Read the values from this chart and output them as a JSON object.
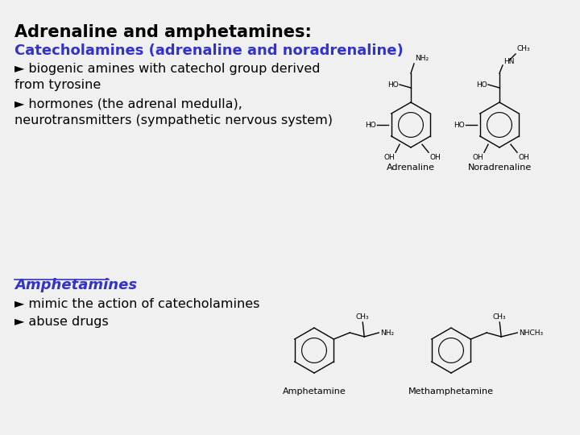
{
  "title": "Adrenaline and amphetamines:",
  "title_color": "#000000",
  "title_fontsize": 15,
  "title_bold": true,
  "section1_heading": "Catecholamines (adrenaline and noradrenaline)",
  "section1_color": "#3333cc",
  "section1_fontsize": 13,
  "bullet1a": "► biogenic amines with catechol group derived\nfrom tyrosine",
  "bullet1b": "► hormones (the adrenal medulla),\nneurotransmitters (sympathetic nervous system)",
  "bullet_color": "#000000",
  "bullet_fontsize": 11.5,
  "section2_heading": "Amphetamines",
  "section2_color": "#3333cc",
  "section2_fontsize": 13,
  "bullet2a": "► mimic the action of catecholamines",
  "bullet2b": "► abuse drugs",
  "background_color": "#f0f0f0",
  "adrenaline_label": "Adrenaline",
  "noradrenaline_label": "Noradrenaline",
  "amphetamine_label": "Amphetamine",
  "methamphetamine_label": "Methamphetamine"
}
